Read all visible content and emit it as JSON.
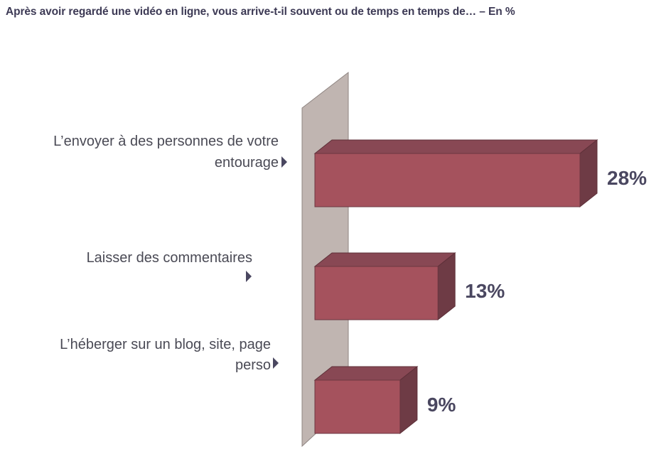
{
  "chart_data": {
    "type": "bar",
    "orientation": "horizontal",
    "title": "Après avoir regardé une vidéo en ligne, vous arrive-t-il souvent ou de temps en temps de… – En %",
    "categories": [
      [
        "L’envoyer à des personnes de votre",
        "entourage"
      ],
      [
        "Laisser des commentaires",
        ""
      ],
      [
        "L’héberger sur un blog, site, page",
        "perso"
      ]
    ],
    "values": [
      28,
      13,
      9
    ],
    "value_labels": [
      "28%",
      "13%",
      "9%"
    ],
    "unit": "%",
    "xlim": [
      0,
      28
    ],
    "grid": false,
    "legend": "none",
    "colors": {
      "bar_front": "#a5525d",
      "bar_top": "#884854",
      "bar_side": "#6e3b45",
      "wall": "#c0b5b1",
      "arrow": "#4a4760"
    }
  }
}
